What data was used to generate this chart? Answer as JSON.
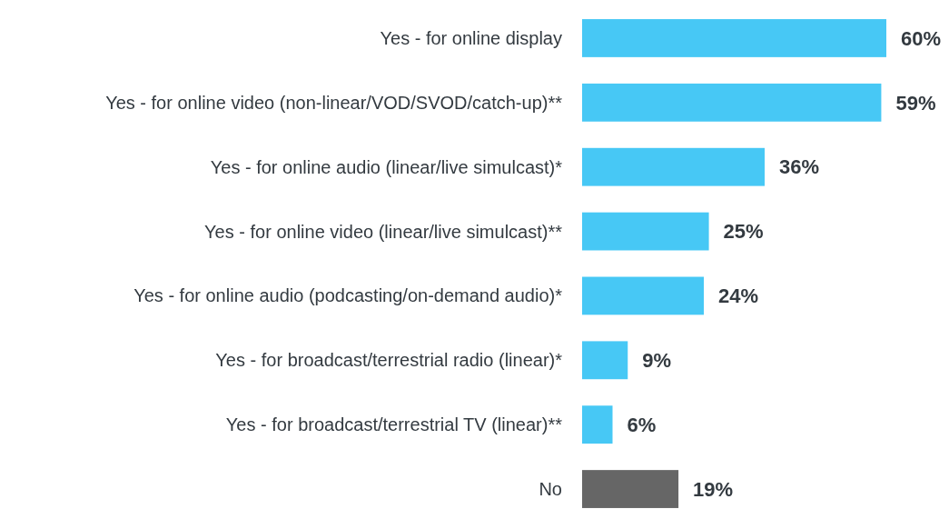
{
  "chart_data": {
    "type": "bar",
    "orientation": "horizontal",
    "categories": [
      "Yes - for online display",
      "Yes - for online video (non-linear/VOD/SVOD/catch-up)**",
      "Yes - for online audio (linear/live simulcast)*",
      "Yes - for online video (linear/live simulcast)**",
      "Yes - for online audio (podcasting/on-demand audio)*",
      "Yes - for broadcast/terrestrial radio (linear)*",
      "Yes - for broadcast/terrestrial TV (linear)**",
      "No"
    ],
    "values": [
      60,
      59,
      36,
      25,
      24,
      9,
      6,
      19
    ],
    "colors": [
      "#47c8f5",
      "#47c8f5",
      "#47c8f5",
      "#47c8f5",
      "#47c8f5",
      "#47c8f5",
      "#47c8f5",
      "#666666"
    ],
    "value_labels": [
      "60%",
      "59%",
      "36%",
      "25%",
      "24%",
      "9%",
      "6%",
      "19%"
    ]
  }
}
